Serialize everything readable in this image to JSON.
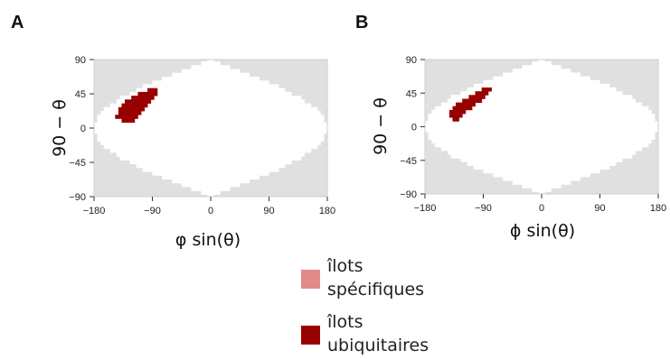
{
  "figure": {
    "panels": [
      {
        "letter": "A",
        "chart_data": {
          "type": "heatmap",
          "projection": "sinusoidal",
          "xlabel": "φ sin(θ)",
          "ylabel": "90 − θ",
          "xlim": [
            -180,
            180
          ],
          "ylim": [
            -90,
            90
          ],
          "xticks": [
            "−180",
            "−90",
            "0",
            "90",
            "180"
          ],
          "yticks": [
            "90",
            "45",
            "0",
            "−45",
            "−90"
          ],
          "background_color": "#e0e0e0",
          "allowed_region_color": "#ffffff",
          "series": [
            {
              "legend": "îlots ubiquitaires",
              "color": "#990000",
              "cells": [
                [
                  -85,
                  50
                ],
                [
                  -90,
                  50
                ],
                [
                  -95,
                  50
                ],
                [
                  -85,
                  45
                ],
                [
                  -90,
                  45
                ],
                [
                  -95,
                  45
                ],
                [
                  -100,
                  45
                ],
                [
                  -105,
                  45
                ],
                [
                  -110,
                  45
                ],
                [
                  -90,
                  40
                ],
                [
                  -95,
                  40
                ],
                [
                  -100,
                  40
                ],
                [
                  -105,
                  40
                ],
                [
                  -110,
                  40
                ],
                [
                  -115,
                  40
                ],
                [
                  -120,
                  40
                ],
                [
                  -95,
                  35
                ],
                [
                  -100,
                  35
                ],
                [
                  -105,
                  35
                ],
                [
                  -110,
                  35
                ],
                [
                  -115,
                  35
                ],
                [
                  -120,
                  35
                ],
                [
                  -125,
                  35
                ],
                [
                  -130,
                  35
                ],
                [
                  -100,
                  30
                ],
                [
                  -105,
                  30
                ],
                [
                  -110,
                  30
                ],
                [
                  -115,
                  30
                ],
                [
                  -120,
                  30
                ],
                [
                  -125,
                  30
                ],
                [
                  -130,
                  30
                ],
                [
                  -135,
                  30
                ],
                [
                  -105,
                  25
                ],
                [
                  -110,
                  25
                ],
                [
                  -115,
                  25
                ],
                [
                  -120,
                  25
                ],
                [
                  -125,
                  25
                ],
                [
                  -130,
                  25
                ],
                [
                  -135,
                  25
                ],
                [
                  -140,
                  25
                ],
                [
                  -110,
                  20
                ],
                [
                  -115,
                  20
                ],
                [
                  -120,
                  20
                ],
                [
                  -125,
                  20
                ],
                [
                  -130,
                  20
                ],
                [
                  -135,
                  20
                ],
                [
                  -140,
                  20
                ],
                [
                  -115,
                  15
                ],
                [
                  -120,
                  15
                ],
                [
                  -125,
                  15
                ],
                [
                  -130,
                  15
                ],
                [
                  -135,
                  15
                ],
                [
                  -140,
                  15
                ],
                [
                  -145,
                  15
                ],
                [
                  -120,
                  10
                ],
                [
                  -125,
                  10
                ],
                [
                  -130,
                  10
                ],
                [
                  -135,
                  10
                ]
              ]
            }
          ]
        }
      },
      {
        "letter": "B",
        "chart_data": {
          "type": "heatmap",
          "projection": "sinusoidal",
          "xlabel": "ϕ sin(θ)",
          "ylabel": "90 − θ",
          "xlim": [
            -180,
            180
          ],
          "ylim": [
            -90,
            90
          ],
          "xticks": [
            "−180",
            "−90",
            "0",
            "90",
            "180"
          ],
          "yticks": [
            "90",
            "45",
            "0",
            "−45",
            "−90"
          ],
          "background_color": "#e0e0e0",
          "allowed_region_color": "#ffffff",
          "series": [
            {
              "legend": "îlots ubiquitaires",
              "color": "#990000",
              "cells": [
                [
                  -80,
                  50
                ],
                [
                  -85,
                  50
                ],
                [
                  -90,
                  50
                ],
                [
                  -85,
                  45
                ],
                [
                  -90,
                  45
                ],
                [
                  -95,
                  45
                ],
                [
                  -100,
                  45
                ],
                [
                  -90,
                  40
                ],
                [
                  -95,
                  40
                ],
                [
                  -100,
                  40
                ],
                [
                  -105,
                  40
                ],
                [
                  -110,
                  40
                ],
                [
                  -95,
                  35
                ],
                [
                  -100,
                  35
                ],
                [
                  -105,
                  35
                ],
                [
                  -110,
                  35
                ],
                [
                  -115,
                  35
                ],
                [
                  -120,
                  35
                ],
                [
                  -105,
                  30
                ],
                [
                  -110,
                  30
                ],
                [
                  -115,
                  30
                ],
                [
                  -120,
                  30
                ],
                [
                  -125,
                  30
                ],
                [
                  -130,
                  30
                ],
                [
                  -110,
                  25
                ],
                [
                  -115,
                  25
                ],
                [
                  -120,
                  25
                ],
                [
                  -125,
                  25
                ],
                [
                  -130,
                  25
                ],
                [
                  -135,
                  25
                ],
                [
                  -120,
                  20
                ],
                [
                  -125,
                  20
                ],
                [
                  -130,
                  20
                ],
                [
                  -135,
                  20
                ],
                [
                  -140,
                  20
                ],
                [
                  -125,
                  15
                ],
                [
                  -130,
                  15
                ],
                [
                  -135,
                  15
                ],
                [
                  -140,
                  15
                ],
                [
                  -130,
                  10
                ],
                [
                  -135,
                  10
                ]
              ]
            }
          ]
        }
      }
    ],
    "legend": {
      "items": [
        {
          "label_line1": "îlots",
          "label_line2": "spécifiques",
          "color": "#e08a8a"
        },
        {
          "label_line1": "îlots",
          "label_line2": "ubiquitaires",
          "color": "#990000"
        }
      ]
    }
  }
}
